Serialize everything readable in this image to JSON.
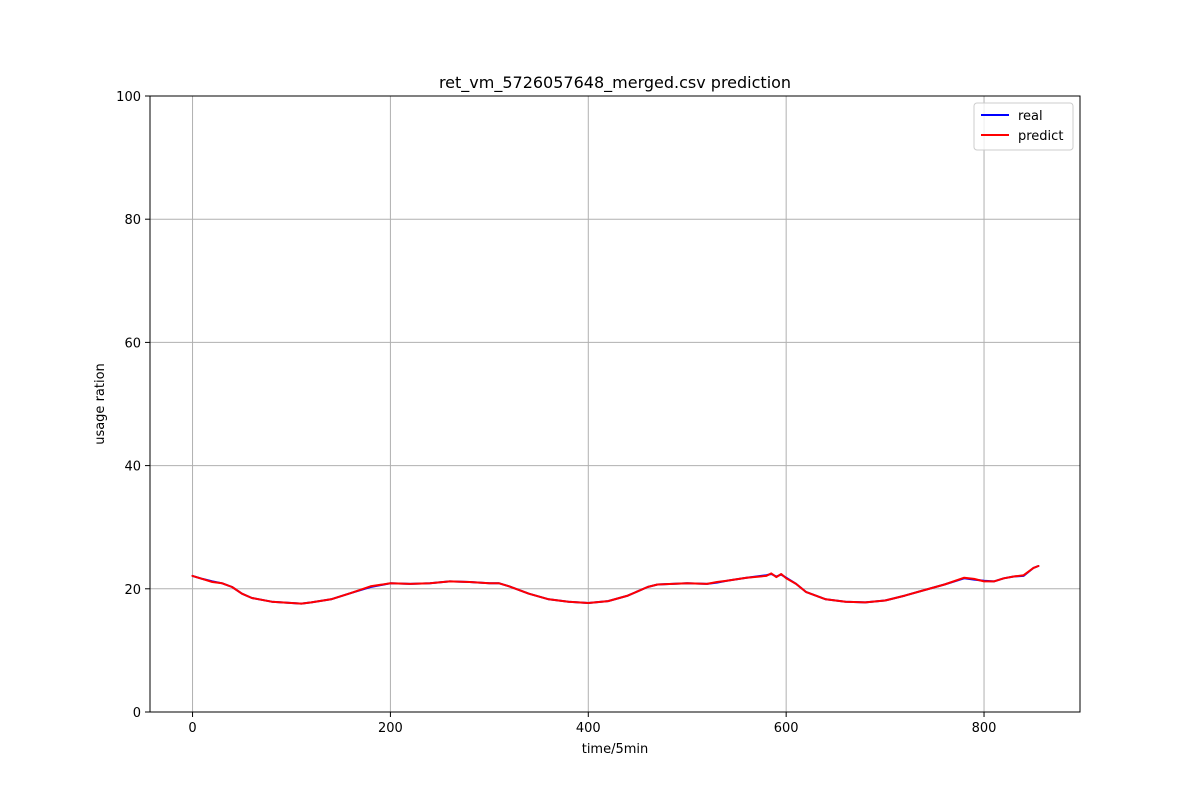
{
  "chart_data": {
    "type": "line",
    "title": "ret_vm_5726057648_merged.csv prediction",
    "xlabel": "time/5min",
    "ylabel": "usage ration",
    "xlim": [
      -43,
      897
    ],
    "ylim": [
      0,
      100
    ],
    "xticks": [
      0,
      200,
      400,
      600,
      800
    ],
    "yticks": [
      0,
      20,
      40,
      60,
      80,
      100
    ],
    "grid": true,
    "legend_position": "top-right",
    "series": [
      {
        "name": "real",
        "color": "#0000ff",
        "x": [
          0,
          10,
          20,
          30,
          40,
          50,
          60,
          80,
          100,
          110,
          120,
          140,
          160,
          180,
          200,
          220,
          240,
          260,
          280,
          300,
          310,
          320,
          340,
          360,
          380,
          400,
          420,
          440,
          460,
          470,
          500,
          520,
          530,
          540,
          560,
          580,
          585,
          590,
          595,
          600,
          610,
          620,
          640,
          660,
          680,
          700,
          720,
          740,
          760,
          780,
          790,
          800,
          810,
          820,
          830,
          840,
          850,
          855
        ],
        "y": [
          22.1,
          21.6,
          21.2,
          20.9,
          20.3,
          19.2,
          18.5,
          17.9,
          17.7,
          17.6,
          17.8,
          18.3,
          19.3,
          20.3,
          20.9,
          20.8,
          20.9,
          21.2,
          21.1,
          20.9,
          20.9,
          20.4,
          19.2,
          18.3,
          17.9,
          17.7,
          18.0,
          18.9,
          20.3,
          20.7,
          20.9,
          20.8,
          21.0,
          21.3,
          21.8,
          22.2,
          22.4,
          22.0,
          22.3,
          21.8,
          20.8,
          19.5,
          18.3,
          17.9,
          17.8,
          18.1,
          18.9,
          19.8,
          20.7,
          21.7,
          21.5,
          21.3,
          21.2,
          21.7,
          22.0,
          22.1,
          23.4,
          23.7
        ]
      },
      {
        "name": "predict",
        "color": "#ff0000",
        "x": [
          0,
          10,
          20,
          30,
          40,
          50,
          60,
          80,
          100,
          110,
          120,
          140,
          160,
          180,
          200,
          220,
          240,
          260,
          280,
          300,
          310,
          320,
          340,
          360,
          380,
          400,
          420,
          440,
          460,
          470,
          500,
          520,
          530,
          540,
          560,
          580,
          585,
          590,
          595,
          600,
          610,
          620,
          640,
          660,
          680,
          700,
          720,
          740,
          760,
          780,
          790,
          800,
          810,
          820,
          830,
          840,
          850,
          855
        ],
        "y": [
          22.1,
          21.6,
          21.1,
          20.9,
          20.3,
          19.2,
          18.5,
          17.9,
          17.7,
          17.6,
          17.8,
          18.3,
          19.3,
          20.4,
          20.9,
          20.8,
          20.9,
          21.2,
          21.1,
          20.9,
          20.9,
          20.4,
          19.2,
          18.3,
          17.9,
          17.7,
          18.0,
          18.9,
          20.3,
          20.7,
          20.9,
          20.8,
          21.1,
          21.3,
          21.8,
          22.1,
          22.5,
          21.9,
          22.4,
          21.7,
          20.8,
          19.5,
          18.3,
          17.9,
          17.8,
          18.1,
          18.9,
          19.8,
          20.7,
          21.8,
          21.6,
          21.2,
          21.2,
          21.7,
          22.0,
          22.2,
          23.4,
          23.7
        ]
      }
    ]
  }
}
